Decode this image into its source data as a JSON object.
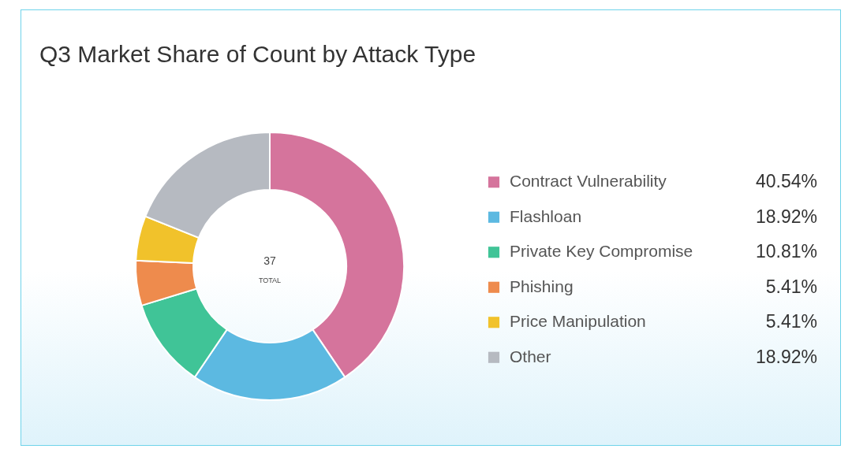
{
  "chart_data": {
    "type": "donut",
    "title": "Q3 Market Share of Count by Attack Type",
    "categories": [
      "Contract Vulnerability",
      "Flashloan",
      "Private Key Compromise",
      "Phishing",
      "Price Manipulation",
      "Other"
    ],
    "values": [
      40.54,
      18.92,
      10.81,
      5.41,
      5.41,
      18.92
    ],
    "value_labels": [
      "40.54%",
      "18.92%",
      "10.81%",
      "5.41%",
      "5.41%",
      "18.92%"
    ],
    "colors": [
      "#d5749c",
      "#5cb9e1",
      "#40c497",
      "#ee8b4d",
      "#f1c22b",
      "#b6bac1"
    ],
    "annotations": [
      "37",
      "TOTAL"
    ],
    "legend": "right"
  }
}
